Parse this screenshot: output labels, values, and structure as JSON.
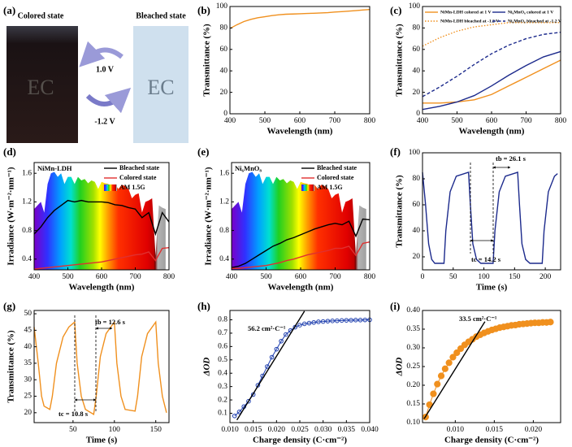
{
  "panel_a": {
    "label": "(a)",
    "colored_state": "Colored state",
    "bleached_state": "Bleached state",
    "forward_voltage": "1.0 V",
    "reverse_voltage": "-1.2 V",
    "device_colored": "EC",
    "device_bleached": "EC"
  },
  "chart_data": [
    {
      "type": "line",
      "label": "(b)",
      "xlabel": "Wavelength (nm)",
      "ylabel": "Transmittance (%)",
      "xlim": [
        400,
        800
      ],
      "xticks": [
        400,
        500,
        600,
        700,
        800
      ],
      "ylim": [
        0,
        100
      ],
      "yticks": [
        0,
        20,
        40,
        60,
        80,
        100
      ],
      "series": [
        {
          "color": "#f0901e",
          "x": [
            400,
            420,
            440,
            460,
            480,
            500,
            520,
            540,
            560,
            580,
            600,
            620,
            640,
            660,
            680,
            700,
            720,
            740,
            760,
            780,
            800
          ],
          "values": [
            79.5,
            83,
            86,
            88,
            89.5,
            90.5,
            91.5,
            92.3,
            92.8,
            93,
            93.2,
            93.5,
            93.7,
            94,
            94.3,
            94.8,
            95.2,
            95.7,
            96.2,
            96.7,
            97.2
          ]
        }
      ]
    },
    {
      "type": "line",
      "label": "(c)",
      "xlabel": "Wavelength (nm)",
      "ylabel": "Transmittance (%)",
      "xlim": [
        400,
        800
      ],
      "xticks": [
        400,
        500,
        600,
        700,
        800
      ],
      "ylim": [
        0,
        100
      ],
      "yticks": [
        0,
        20,
        40,
        60,
        80,
        100
      ],
      "series": [
        {
          "name": "NiMn-LDH colored at 1 V",
          "color": "#f0901e",
          "linestyle": "solid",
          "x": [
            400,
            450,
            500,
            550,
            600,
            650,
            700,
            750,
            800
          ],
          "values": [
            10,
            10,
            11,
            13,
            18,
            26,
            34,
            42,
            50
          ]
        },
        {
          "name": "Ni₆MnO₈ colored at 1 V",
          "color": "#1c2a8c",
          "linestyle": "solid",
          "x": [
            400,
            450,
            500,
            550,
            600,
            650,
            700,
            750,
            800
          ],
          "values": [
            4,
            7,
            11,
            17,
            26,
            36,
            45,
            53,
            58
          ]
        },
        {
          "name": "NiMn-LDH bleached at -1.2 V",
          "color": "#f0901e",
          "linestyle": "dotted",
          "x": [
            400,
            450,
            500,
            550,
            600,
            650,
            700,
            750,
            800
          ],
          "values": [
            63,
            71,
            77,
            81,
            83,
            85,
            85,
            85,
            85
          ]
        },
        {
          "name": "Ni₆MnO₈ bleached at -1.2 V",
          "color": "#1c2a8c",
          "linestyle": "dashed",
          "x": [
            400,
            450,
            500,
            550,
            600,
            650,
            700,
            750,
            800
          ],
          "values": [
            16,
            25,
            35,
            46,
            56,
            64,
            70,
            74,
            76
          ]
        }
      ]
    },
    {
      "type": "line",
      "label": "(d)",
      "xlabel": "Wavelength (nm)",
      "ylabel": "Irradiance (W·m⁻²·nm⁻¹)",
      "xlim": [
        400,
        800
      ],
      "xticks": [
        400,
        500,
        600,
        700,
        800
      ],
      "ylim": [
        0.25,
        1.75
      ],
      "yticks": [
        0.4,
        0.8,
        1.2,
        1.6
      ],
      "annotations": [
        "NiMn-LDH"
      ],
      "series": [
        {
          "name": "Bleached state",
          "color": "#000000",
          "x": [
            400,
            420,
            440,
            460,
            480,
            500,
            520,
            540,
            560,
            580,
            600,
            620,
            640,
            660,
            680,
            700,
            720,
            740,
            760,
            780,
            800
          ],
          "values": [
            0.75,
            0.85,
            0.98,
            1.08,
            1.15,
            1.22,
            1.2,
            1.22,
            1.2,
            1.2,
            1.2,
            1.19,
            1.16,
            1.15,
            1.12,
            1.1,
            0.98,
            1.05,
            0.75,
            1.05,
            0.92
          ]
        },
        {
          "name": "Colored state",
          "color": "#e03030",
          "x": [
            400,
            420,
            440,
            460,
            480,
            500,
            520,
            540,
            560,
            580,
            600,
            620,
            640,
            660,
            680,
            700,
            720,
            740,
            760,
            780,
            800
          ],
          "values": [
            0.26,
            0.27,
            0.28,
            0.29,
            0.3,
            0.31,
            0.32,
            0.33,
            0.34,
            0.35,
            0.36,
            0.38,
            0.4,
            0.42,
            0.44,
            0.46,
            0.47,
            0.5,
            0.38,
            0.55,
            0.56
          ]
        },
        {
          "name": "AM 1.5G",
          "fill": "spectrum",
          "x": [
            400,
            410,
            420,
            430,
            440,
            450,
            460,
            470,
            480,
            490,
            500,
            510,
            520,
            530,
            540,
            550,
            560,
            570,
            580,
            590,
            600,
            610,
            620,
            630,
            640,
            650,
            660,
            670,
            680,
            690,
            700,
            710,
            720,
            730,
            740,
            750,
            760,
            770,
            780,
            790
          ],
          "values": [
            1.1,
            1.15,
            1.2,
            1.05,
            1.45,
            1.6,
            1.62,
            1.55,
            1.6,
            1.45,
            1.55,
            1.55,
            1.45,
            1.55,
            1.5,
            1.52,
            1.46,
            1.5,
            1.48,
            1.38,
            1.48,
            1.46,
            1.45,
            1.4,
            1.44,
            1.38,
            1.44,
            1.42,
            1.38,
            1.25,
            1.3,
            1.32,
            1.05,
            1.2,
            1.22,
            1.25,
            0.45,
            1.15,
            1.12,
            1.1
          ]
        }
      ]
    },
    {
      "type": "line",
      "label": "(e)",
      "xlabel": "Wavelength (nm)",
      "ylabel": "Irradiance (W·m⁻²·nm⁻¹)",
      "xlim": [
        400,
        800
      ],
      "xticks": [
        400,
        500,
        600,
        700,
        800
      ],
      "ylim": [
        0.25,
        1.75
      ],
      "yticks": [
        0.4,
        0.8,
        1.2,
        1.6
      ],
      "annotations": [
        "Ni₆MnO₈"
      ],
      "series": [
        {
          "name": "Bleached state",
          "color": "#000000",
          "x": [
            400,
            420,
            440,
            460,
            480,
            500,
            520,
            540,
            560,
            580,
            600,
            620,
            640,
            660,
            680,
            700,
            720,
            740,
            760,
            780,
            800
          ],
          "values": [
            0.28,
            0.3,
            0.34,
            0.4,
            0.46,
            0.52,
            0.58,
            0.62,
            0.67,
            0.7,
            0.74,
            0.78,
            0.82,
            0.85,
            0.88,
            0.9,
            0.88,
            0.93,
            0.72,
            0.96,
            0.95
          ]
        },
        {
          "name": "Colored state",
          "color": "#e03030",
          "x": [
            400,
            420,
            440,
            460,
            480,
            500,
            520,
            540,
            560,
            580,
            600,
            620,
            640,
            660,
            680,
            700,
            720,
            740,
            760,
            780,
            800
          ],
          "values": [
            0.27,
            0.27,
            0.28,
            0.29,
            0.3,
            0.31,
            0.33,
            0.35,
            0.38,
            0.4,
            0.43,
            0.46,
            0.48,
            0.5,
            0.52,
            0.55,
            0.55,
            0.58,
            0.45,
            0.62,
            0.64
          ]
        },
        {
          "name": "AM 1.5G",
          "fill": "spectrum",
          "x": [
            400,
            410,
            420,
            430,
            440,
            450,
            460,
            470,
            480,
            490,
            500,
            510,
            520,
            530,
            540,
            550,
            560,
            570,
            580,
            590,
            600,
            610,
            620,
            630,
            640,
            650,
            660,
            670,
            680,
            690,
            700,
            710,
            720,
            730,
            740,
            750,
            760,
            770,
            780,
            790
          ],
          "values": [
            1.1,
            1.15,
            1.2,
            1.05,
            1.45,
            1.6,
            1.62,
            1.55,
            1.6,
            1.45,
            1.55,
            1.55,
            1.45,
            1.55,
            1.5,
            1.52,
            1.46,
            1.5,
            1.48,
            1.38,
            1.48,
            1.46,
            1.45,
            1.4,
            1.44,
            1.38,
            1.44,
            1.42,
            1.38,
            1.25,
            1.3,
            1.32,
            1.05,
            1.2,
            1.22,
            1.25,
            0.45,
            1.15,
            1.12,
            1.1
          ]
        }
      ]
    },
    {
      "type": "line",
      "label": "(f)",
      "xlabel": "Time (s)",
      "ylabel": "Transmittance (%)",
      "xlim": [
        0,
        225
      ],
      "xticks": [
        0,
        50,
        100,
        150,
        200
      ],
      "ylim": [
        10,
        100
      ],
      "yticks": [
        20,
        40,
        60,
        80,
        100
      ],
      "annotations": [
        "tb = 26.1 s",
        "tc = 14.2 s"
      ],
      "series": [
        {
          "color": "#1c2a8c",
          "x": [
            0,
            5,
            10,
            15,
            20,
            35,
            38,
            45,
            55,
            75,
            78,
            82,
            88,
            95,
            115,
            118,
            125,
            135,
            155,
            158,
            162,
            168,
            175,
            195,
            198,
            205,
            215,
            220
          ],
          "values": [
            85,
            60,
            30,
            18,
            15,
            15,
            40,
            70,
            82,
            85,
            60,
            30,
            18,
            15,
            15,
            40,
            70,
            82,
            85,
            60,
            30,
            18,
            15,
            15,
            40,
            70,
            82,
            84
          ]
        }
      ]
    },
    {
      "type": "line",
      "label": "(g)",
      "xlabel": "Time (s)",
      "ylabel": "Transmittance (%)",
      "xlim": [
        3,
        166
      ],
      "xticks": [
        50,
        100,
        150
      ],
      "ylim": [
        17,
        51
      ],
      "yticks": [
        20,
        25,
        30,
        35,
        40,
        45,
        50
      ],
      "annotations": [
        "tb = 12.6 s",
        "tc = 10.8 s"
      ],
      "series": [
        {
          "color": "#f0901e",
          "x": [
            3,
            8,
            12,
            15,
            22,
            25,
            30,
            38,
            45,
            52,
            55,
            60,
            65,
            75,
            78,
            83,
            90,
            100,
            103,
            108,
            113,
            125,
            128,
            133,
            140,
            150,
            153,
            158,
            163
          ],
          "values": [
            46,
            35,
            25,
            22,
            21,
            25,
            35,
            43,
            46,
            47.5,
            35,
            25,
            21,
            19.5,
            25,
            37,
            44,
            47.5,
            35,
            25,
            21,
            20.5,
            25,
            37,
            44,
            47.5,
            35,
            25,
            20
          ]
        }
      ]
    },
    {
      "type": "scatter",
      "label": "(h)",
      "xlabel": "Charge density (C·cm⁻²)",
      "ylabel": "ΔOD",
      "xlim": [
        0.01,
        0.04
      ],
      "xticks": [
        {
          "value": 0.01,
          "label": "0.010"
        },
        {
          "value": 0.015,
          "label": "0.015"
        },
        {
          "value": 0.02,
          "label": "0.020"
        },
        {
          "value": 0.025,
          "label": "0.025"
        },
        {
          "value": 0.03,
          "label": "0.030"
        },
        {
          "value": 0.035,
          "label": "0.035"
        },
        {
          "value": 0.04,
          "label": "0.040"
        }
      ],
      "ylim": [
        0.03,
        0.87
      ],
      "yticks": [
        0.1,
        0.2,
        0.3,
        0.4,
        0.5,
        0.6,
        0.7,
        0.8
      ],
      "annotations": [
        "56.2 cm²·C⁻¹"
      ],
      "series": [
        {
          "color": "#1f3fae",
          "marker": "circle",
          "x": [
            0.011,
            0.012,
            0.013,
            0.014,
            0.015,
            0.016,
            0.017,
            0.018,
            0.019,
            0.02,
            0.021,
            0.022,
            0.023,
            0.024,
            0.025,
            0.026,
            0.027,
            0.028,
            0.029,
            0.03,
            0.031,
            0.032,
            0.033,
            0.034,
            0.035,
            0.036,
            0.037,
            0.038,
            0.039,
            0.04
          ],
          "values": [
            0.08,
            0.11,
            0.15,
            0.19,
            0.24,
            0.31,
            0.38,
            0.45,
            0.52,
            0.58,
            0.64,
            0.69,
            0.72,
            0.745,
            0.76,
            0.77,
            0.775,
            0.78,
            0.785,
            0.787,
            0.79,
            0.792,
            0.793,
            0.795,
            0.796,
            0.797,
            0.798,
            0.798,
            0.799,
            0.8
          ]
        },
        {
          "color": "#000000",
          "x": [
            0.0115,
            0.026
          ],
          "values": [
            0.05,
            0.865
          ]
        }
      ]
    },
    {
      "type": "scatter",
      "label": "(i)",
      "xlabel": "Charge density (C·cm⁻²)",
      "ylabel": "ΔOD",
      "xlim": [
        0.0058,
        0.0235
      ],
      "xticks": [
        {
          "value": 0.01,
          "label": "0.010"
        },
        {
          "value": 0.015,
          "label": "0.015"
        },
        {
          "value": 0.02,
          "label": "0.020"
        }
      ],
      "ylim": [
        0.1,
        0.4
      ],
      "yticks": [
        {
          "value": 0.1,
          "label": "0.10"
        },
        0.15,
        {
          "value": 0.2,
          "label": "0.20"
        },
        0.25,
        {
          "value": 0.3,
          "label": "0.30"
        },
        0.35,
        {
          "value": 0.4,
          "label": "0.40"
        }
      ],
      "annotations": [
        "33.5 cm²·C⁻¹"
      ],
      "series": [
        {
          "color": "#f0901e",
          "marker": "circle",
          "x": [
            0.0062,
            0.0067,
            0.0072,
            0.0077,
            0.0082,
            0.0087,
            0.0092,
            0.0097,
            0.0102,
            0.0107,
            0.0112,
            0.0117,
            0.0122,
            0.0127,
            0.0132,
            0.0137,
            0.0142,
            0.0147,
            0.0152,
            0.0157,
            0.0162,
            0.0167,
            0.0172,
            0.0177,
            0.0182,
            0.0187,
            0.0192,
            0.0197,
            0.0202,
            0.0207,
            0.0212,
            0.0217,
            0.0222
          ],
          "values": [
            0.115,
            0.148,
            0.177,
            0.203,
            0.225,
            0.244,
            0.26,
            0.275,
            0.287,
            0.298,
            0.308,
            0.316,
            0.323,
            0.33,
            0.335,
            0.34,
            0.344,
            0.348,
            0.351,
            0.354,
            0.356,
            0.358,
            0.36,
            0.361,
            0.363,
            0.364,
            0.365,
            0.366,
            0.367,
            0.367,
            0.368,
            0.368,
            0.369
          ]
        },
        {
          "color": "#000000",
          "x": [
            0.006,
            0.0138
          ],
          "values": [
            0.11,
            0.37
          ]
        }
      ]
    }
  ]
}
